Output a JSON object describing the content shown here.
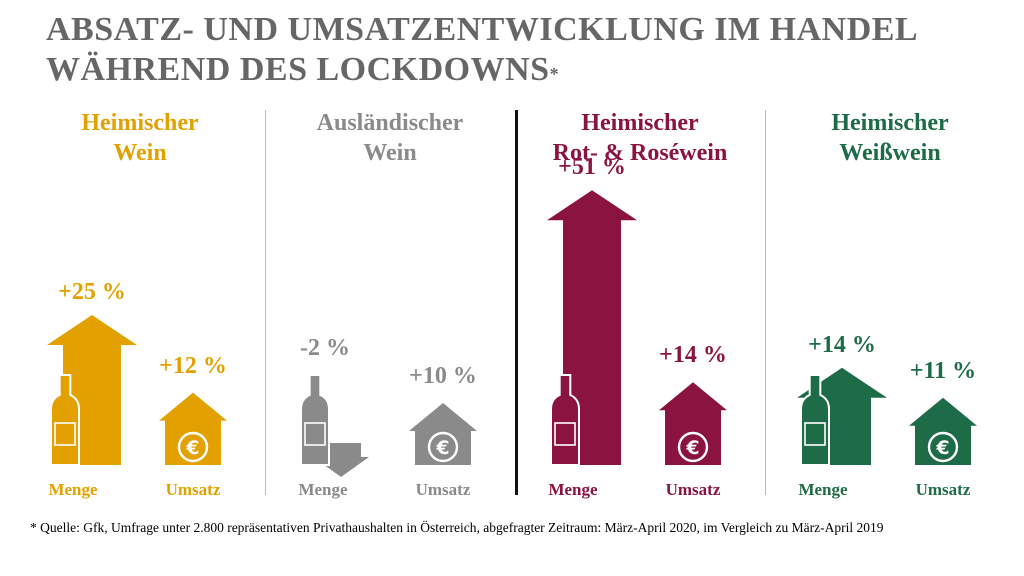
{
  "title": {
    "line1": "ABSATZ- UND UMSATZENTWICKLUNG IM HANDEL",
    "line2": "WÄHREND DES LOCKDOWNS",
    "mark": "*"
  },
  "footnote": "* Quelle: Gfk, Umfrage unter 2.800 repräsentativen Privathaushalten in Österreich, abgefragter Zeitraum: März-April 2020, im Vergleich zu März-April 2019",
  "colors": {
    "heimisch": "#e2a100",
    "auslaendisch": "#8a8a8a",
    "rot": "#8b1340",
    "weiss": "#1e6b47",
    "title": "#666666"
  },
  "chart_data": {
    "type": "bar",
    "categories": [
      "Menge",
      "Umsatz"
    ],
    "unit": "%",
    "series": [
      {
        "name": "Heimischer Wein",
        "color": "#e2a100",
        "values": [
          25,
          12
        ],
        "labels": [
          "+25 %",
          "+12 %"
        ]
      },
      {
        "name": "Ausländischer Wein",
        "color": "#8a8a8a",
        "values": [
          -2,
          10
        ],
        "labels": [
          "-2 %",
          "+10 %"
        ]
      },
      {
        "name": "Heimischer Rot- & Roséwein",
        "color": "#8b1340",
        "values": [
          51,
          14
        ],
        "labels": [
          "+51 %",
          "+14 %"
        ]
      },
      {
        "name": "Heimischer Weißwein",
        "color": "#1e6b47",
        "values": [
          14,
          11
        ],
        "labels": [
          "+14 %",
          "+11 %"
        ]
      }
    ],
    "panels": [
      {
        "title1": "Heimischer",
        "title2": "Wein",
        "menge": "Menge",
        "umsatz": "Umsatz"
      },
      {
        "title1": "Ausländischer",
        "title2": "Wein",
        "menge": "Menge",
        "umsatz": "Umsatz"
      },
      {
        "title1": "Heimischer",
        "title2": "Rot- & Roséwein",
        "menge": "Menge",
        "umsatz": "Umsatz"
      },
      {
        "title1": "Heimischer",
        "title2": "Weißwein",
        "menge": "Menge",
        "umsatz": "Umsatz"
      }
    ]
  }
}
